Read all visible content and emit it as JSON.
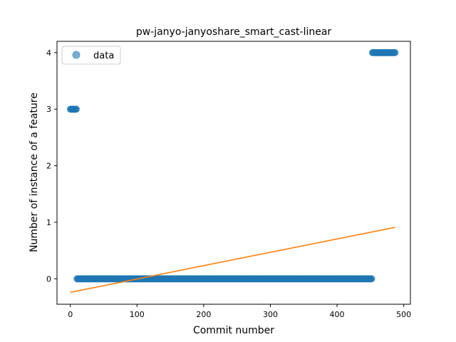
{
  "chart_data": {
    "type": "scatter",
    "title": "pw-janyo-janyoshare_smart_cast-linear",
    "xlabel": "Commit number",
    "ylabel": "Number of instance of a feature",
    "xlim": [
      -20,
      510
    ],
    "ylim": [
      -0.45,
      4.2
    ],
    "xticks": [
      0,
      100,
      200,
      300,
      400,
      500
    ],
    "yticks": [
      0,
      1,
      2,
      3,
      4
    ],
    "grid": false,
    "legend": {
      "placement": "top-left",
      "entries": [
        "data"
      ]
    },
    "colors": {
      "data": "#1f77b4",
      "fit": "#ff7f0e"
    },
    "series": [
      {
        "name": "data",
        "kind": "scatter",
        "segments": [
          {
            "x_start": 0,
            "x_end": 9,
            "y": 3
          },
          {
            "x_start": 10,
            "x_end": 452,
            "y": 0
          },
          {
            "x_start": 453,
            "x_end": 487,
            "y": 4
          }
        ]
      },
      {
        "kind": "line",
        "x": [
          0,
          487
        ],
        "y": [
          -0.24,
          0.91
        ]
      }
    ]
  }
}
